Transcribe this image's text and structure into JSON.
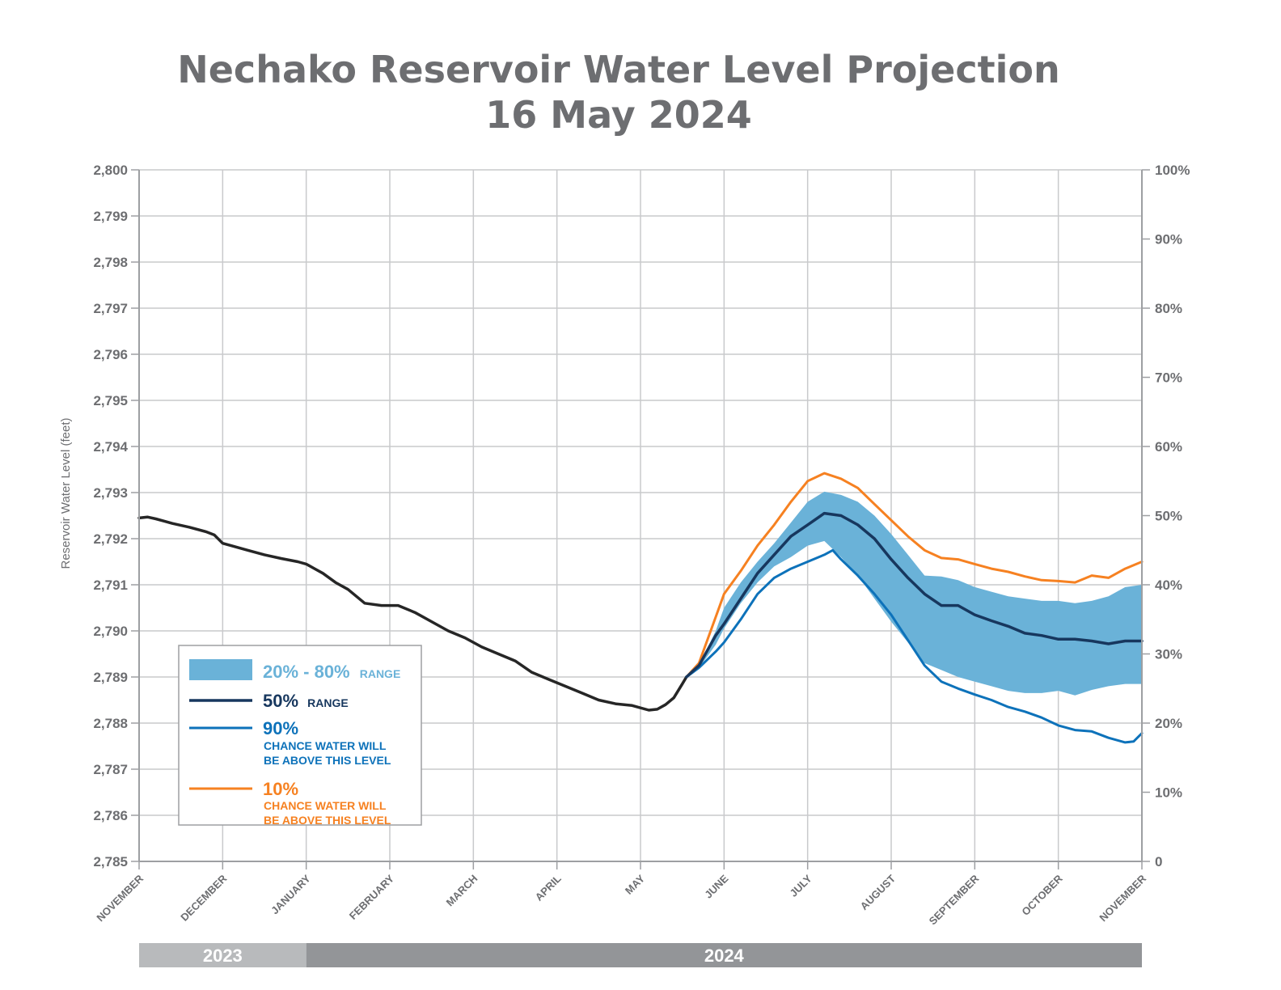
{
  "title": {
    "line1": "Nechako Reservoir Water Level Projection",
    "line2": "16 May 2024"
  },
  "chart_data": {
    "type": "line",
    "ylabel": "Reservoir Water Level (feet)",
    "ylim": [
      2785,
      2800
    ],
    "y_ticks": [
      "2,785",
      "2,786",
      "2,787",
      "2,788",
      "2,789",
      "2,790",
      "2,791",
      "2,792",
      "2,793",
      "2,794",
      "2,795",
      "2,796",
      "2,797",
      "2,798",
      "2,799",
      "2,800"
    ],
    "y2_ticks": [
      "0",
      "10%",
      "20%",
      "30%",
      "40%",
      "50%",
      "60%",
      "70%",
      "80%",
      "90%",
      "100%"
    ],
    "x_ticks": [
      "NOVEMBER",
      "DECEMBER",
      "JANUARY",
      "FEBRUARY",
      "MARCH",
      "APRIL",
      "MAY",
      "JUNE",
      "JULY",
      "AUGUST",
      "SEPTEMBER",
      "OCTOBER",
      "NOVEMBER"
    ],
    "xlim_months": [
      0,
      12
    ],
    "years": [
      {
        "label": "2023",
        "start": 0,
        "end": 2
      },
      {
        "label": "2024",
        "start": 2,
        "end": 12
      }
    ],
    "grid": true,
    "legend_placement": "bottom-left",
    "series": [
      {
        "key": "observed",
        "color": "#262626",
        "points": [
          [
            0.0,
            2792.45
          ],
          [
            0.1,
            2792.47
          ],
          [
            0.2,
            2792.43
          ],
          [
            0.3,
            2792.38
          ],
          [
            0.4,
            2792.33
          ],
          [
            0.6,
            2792.25
          ],
          [
            0.8,
            2792.15
          ],
          [
            0.9,
            2792.08
          ],
          [
            1.0,
            2791.9
          ],
          [
            1.1,
            2791.85
          ],
          [
            1.3,
            2791.75
          ],
          [
            1.5,
            2791.65
          ],
          [
            1.7,
            2791.57
          ],
          [
            1.9,
            2791.5
          ],
          [
            2.0,
            2791.45
          ],
          [
            2.1,
            2791.35
          ],
          [
            2.2,
            2791.25
          ],
          [
            2.35,
            2791.05
          ],
          [
            2.5,
            2790.9
          ],
          [
            2.7,
            2790.6
          ],
          [
            2.9,
            2790.55
          ],
          [
            3.1,
            2790.55
          ],
          [
            3.3,
            2790.4
          ],
          [
            3.5,
            2790.2
          ],
          [
            3.7,
            2790.0
          ],
          [
            3.9,
            2789.85
          ],
          [
            4.1,
            2789.65
          ],
          [
            4.3,
            2789.5
          ],
          [
            4.5,
            2789.35
          ],
          [
            4.7,
            2789.1
          ],
          [
            4.9,
            2788.95
          ],
          [
            5.1,
            2788.8
          ],
          [
            5.3,
            2788.65
          ],
          [
            5.5,
            2788.5
          ],
          [
            5.7,
            2788.42
          ],
          [
            5.9,
            2788.38
          ],
          [
            6.1,
            2788.28
          ],
          [
            6.2,
            2788.3
          ],
          [
            6.3,
            2788.4
          ],
          [
            6.4,
            2788.55
          ],
          [
            6.5,
            2788.85
          ],
          [
            6.55,
            2789.0
          ]
        ]
      },
      {
        "key": "p10",
        "name": "10%",
        "color": "#f68121",
        "points": [
          [
            6.55,
            2789.0
          ],
          [
            6.7,
            2789.3
          ],
          [
            6.9,
            2790.3
          ],
          [
            7.0,
            2790.8
          ],
          [
            7.2,
            2791.3
          ],
          [
            7.4,
            2791.85
          ],
          [
            7.6,
            2792.3
          ],
          [
            7.8,
            2792.8
          ],
          [
            8.0,
            2793.25
          ],
          [
            8.2,
            2793.42
          ],
          [
            8.4,
            2793.3
          ],
          [
            8.6,
            2793.1
          ],
          [
            8.8,
            2792.75
          ],
          [
            9.0,
            2792.4
          ],
          [
            9.2,
            2792.05
          ],
          [
            9.4,
            2791.75
          ],
          [
            9.6,
            2791.58
          ],
          [
            9.8,
            2791.55
          ],
          [
            10.0,
            2791.45
          ],
          [
            10.2,
            2791.35
          ],
          [
            10.4,
            2791.28
          ],
          [
            10.6,
            2791.18
          ],
          [
            10.8,
            2791.1
          ],
          [
            11.0,
            2791.08
          ],
          [
            11.2,
            2791.05
          ],
          [
            11.4,
            2791.2
          ],
          [
            11.6,
            2791.15
          ],
          [
            11.8,
            2791.35
          ],
          [
            12.0,
            2791.5
          ]
        ]
      },
      {
        "key": "band_high",
        "name": "80%",
        "color": "#6ab2d8",
        "points": [
          [
            6.55,
            2789.0
          ],
          [
            6.7,
            2789.25
          ],
          [
            6.9,
            2790.0
          ],
          [
            7.0,
            2790.5
          ],
          [
            7.2,
            2791.05
          ],
          [
            7.4,
            2791.5
          ],
          [
            7.6,
            2791.9
          ],
          [
            7.8,
            2792.35
          ],
          [
            8.0,
            2792.8
          ],
          [
            8.2,
            2793.02
          ],
          [
            8.4,
            2792.95
          ],
          [
            8.6,
            2792.8
          ],
          [
            8.8,
            2792.5
          ],
          [
            9.0,
            2792.1
          ],
          [
            9.2,
            2791.65
          ],
          [
            9.4,
            2791.2
          ],
          [
            9.6,
            2791.18
          ],
          [
            9.8,
            2791.1
          ],
          [
            10.0,
            2790.95
          ],
          [
            10.2,
            2790.85
          ],
          [
            10.4,
            2790.75
          ],
          [
            10.6,
            2790.7
          ],
          [
            10.8,
            2790.65
          ],
          [
            11.0,
            2790.65
          ],
          [
            11.2,
            2790.6
          ],
          [
            11.4,
            2790.65
          ],
          [
            11.6,
            2790.75
          ],
          [
            11.8,
            2790.95
          ],
          [
            12.0,
            2791.0
          ]
        ]
      },
      {
        "key": "band_low",
        "name": "20%",
        "color": "#6ab2d8",
        "points": [
          [
            6.55,
            2789.0
          ],
          [
            6.7,
            2789.2
          ],
          [
            6.9,
            2789.7
          ],
          [
            7.0,
            2790.05
          ],
          [
            7.2,
            2790.6
          ],
          [
            7.4,
            2791.05
          ],
          [
            7.6,
            2791.4
          ],
          [
            7.8,
            2791.6
          ],
          [
            8.0,
            2791.85
          ],
          [
            8.2,
            2791.95
          ],
          [
            8.4,
            2791.6
          ],
          [
            8.6,
            2791.2
          ],
          [
            8.8,
            2790.7
          ],
          [
            9.0,
            2790.2
          ],
          [
            9.2,
            2789.75
          ],
          [
            9.4,
            2789.3
          ],
          [
            9.6,
            2789.15
          ],
          [
            9.8,
            2789.0
          ],
          [
            10.0,
            2788.9
          ],
          [
            10.2,
            2788.8
          ],
          [
            10.4,
            2788.7
          ],
          [
            10.6,
            2788.65
          ],
          [
            10.8,
            2788.65
          ],
          [
            11.0,
            2788.7
          ],
          [
            11.2,
            2788.6
          ],
          [
            11.4,
            2788.72
          ],
          [
            11.6,
            2788.8
          ],
          [
            11.8,
            2788.85
          ],
          [
            12.0,
            2788.85
          ]
        ]
      },
      {
        "key": "p50",
        "name": "50%",
        "color": "#17375e",
        "points": [
          [
            6.55,
            2789.0
          ],
          [
            6.7,
            2789.25
          ],
          [
            6.9,
            2789.9
          ],
          [
            7.0,
            2790.15
          ],
          [
            7.2,
            2790.7
          ],
          [
            7.4,
            2791.25
          ],
          [
            7.6,
            2791.65
          ],
          [
            7.8,
            2792.05
          ],
          [
            8.0,
            2792.3
          ],
          [
            8.2,
            2792.55
          ],
          [
            8.4,
            2792.5
          ],
          [
            8.6,
            2792.3
          ],
          [
            8.8,
            2792.0
          ],
          [
            9.0,
            2791.55
          ],
          [
            9.2,
            2791.15
          ],
          [
            9.4,
            2790.8
          ],
          [
            9.6,
            2790.55
          ],
          [
            9.8,
            2790.55
          ],
          [
            10.0,
            2790.35
          ],
          [
            10.2,
            2790.22
          ],
          [
            10.4,
            2790.1
          ],
          [
            10.6,
            2789.95
          ],
          [
            10.8,
            2789.9
          ],
          [
            11.0,
            2789.82
          ],
          [
            11.2,
            2789.82
          ],
          [
            11.4,
            2789.78
          ],
          [
            11.6,
            2789.72
          ],
          [
            11.8,
            2789.78
          ],
          [
            12.0,
            2789.78
          ]
        ]
      },
      {
        "key": "p90",
        "name": "90%",
        "color": "#0d72ba",
        "points": [
          [
            6.55,
            2789.0
          ],
          [
            6.7,
            2789.2
          ],
          [
            6.9,
            2789.55
          ],
          [
            7.0,
            2789.75
          ],
          [
            7.2,
            2790.25
          ],
          [
            7.4,
            2790.8
          ],
          [
            7.6,
            2791.15
          ],
          [
            7.8,
            2791.35
          ],
          [
            8.0,
            2791.5
          ],
          [
            8.2,
            2791.65
          ],
          [
            8.3,
            2791.75
          ],
          [
            8.4,
            2791.55
          ],
          [
            8.6,
            2791.2
          ],
          [
            8.8,
            2790.8
          ],
          [
            9.0,
            2790.35
          ],
          [
            9.2,
            2789.8
          ],
          [
            9.4,
            2789.25
          ],
          [
            9.6,
            2788.9
          ],
          [
            9.8,
            2788.75
          ],
          [
            10.0,
            2788.62
          ],
          [
            10.2,
            2788.5
          ],
          [
            10.4,
            2788.35
          ],
          [
            10.6,
            2788.25
          ],
          [
            10.8,
            2788.12
          ],
          [
            11.0,
            2787.95
          ],
          [
            11.2,
            2787.85
          ],
          [
            11.4,
            2787.82
          ],
          [
            11.6,
            2787.68
          ],
          [
            11.8,
            2787.58
          ],
          [
            11.9,
            2787.6
          ],
          [
            12.0,
            2787.78
          ]
        ]
      }
    ]
  },
  "legend": {
    "band": {
      "big": "20% - 80%",
      "small": "RANGE"
    },
    "p50": {
      "big": "50%",
      "small": "RANGE"
    },
    "p90": {
      "big": "90%",
      "line1": "CHANCE WATER WILL",
      "line2": "BE ABOVE THIS LEVEL"
    },
    "p10": {
      "big": "10%",
      "line1": "CHANCE WATER WILL",
      "line2": "BE ABOVE THIS LEVEL"
    }
  }
}
